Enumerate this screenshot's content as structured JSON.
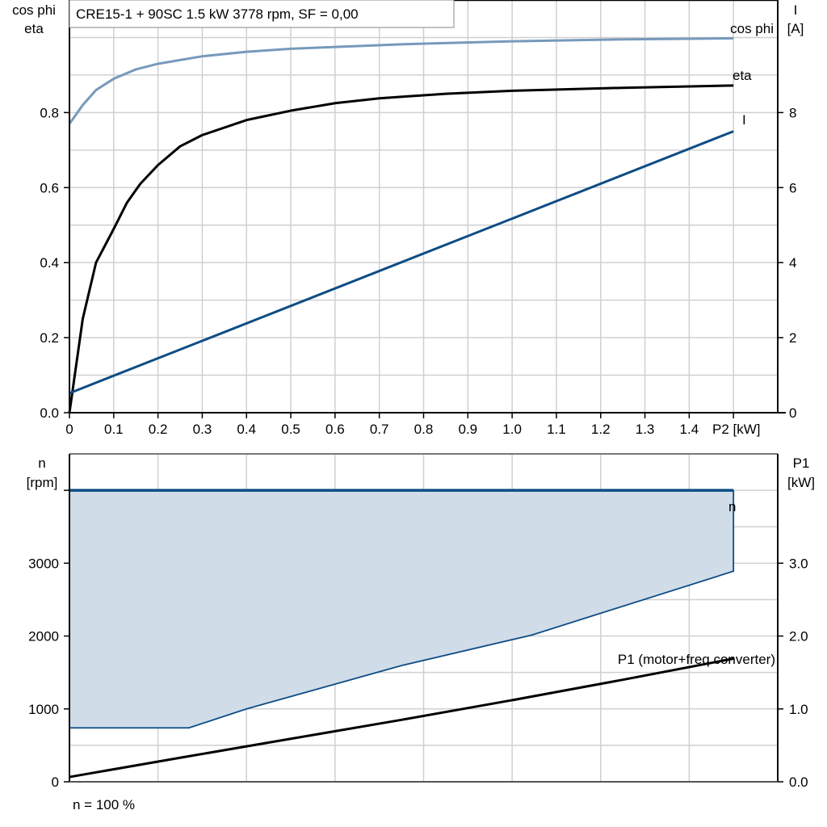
{
  "colors": {
    "cos_phi": "#7799bb",
    "eta": "#000000",
    "I": "#0e4c85",
    "n": "#0e4c85",
    "n_fill": "#d0dce8",
    "P1": "#000000",
    "grid": "#d0d0d0"
  },
  "chart_data": [
    {
      "type": "line",
      "title": "CRE15-1 + 90SC   1.5 kW   3778 rpm, SF = 0,00",
      "xlabel": "P2 [kW]",
      "ylabel_left": [
        "cos phi",
        "eta"
      ],
      "ylabel_right": [
        "I",
        "[A]"
      ],
      "xlim": [
        0,
        1.6
      ],
      "ylim_left": [
        0,
        1.1
      ],
      "ylim_right": [
        0,
        11
      ],
      "grid": true,
      "x_ticks": [
        0,
        0.1,
        0.2,
        0.3,
        0.4,
        0.5,
        0.6,
        0.7,
        0.8,
        0.9,
        1.0,
        1.1,
        1.2,
        1.3,
        1.4
      ],
      "x_tick_labels": [
        "0",
        "0.1",
        "0.2",
        "0.3",
        "0.4",
        "0.5",
        "0.6",
        "0.7",
        "0.8",
        "0.9",
        "1.0",
        "1.1",
        "1.2",
        "1.3",
        "1.4"
      ],
      "y_left_ticks": [
        0,
        0.2,
        0.4,
        0.6,
        0.8
      ],
      "y_left_tick_labels": [
        "0.0",
        "0.2",
        "0.4",
        "0.6",
        "0.8"
      ],
      "y_right_ticks": [
        0,
        2,
        4,
        6,
        8
      ],
      "y_right_tick_labels": [
        "0",
        "2",
        "4",
        "6",
        "8"
      ],
      "series": [
        {
          "name": "cos phi",
          "axis": "left",
          "x": [
            0,
            0.03,
            0.06,
            0.1,
            0.15,
            0.2,
            0.3,
            0.4,
            0.5,
            0.75,
            1.0,
            1.25,
            1.5
          ],
          "y": [
            0.77,
            0.82,
            0.86,
            0.89,
            0.915,
            0.93,
            0.95,
            0.962,
            0.97,
            0.982,
            0.99,
            0.995,
            0.998
          ]
        },
        {
          "name": "eta",
          "axis": "left",
          "x": [
            0,
            0.03,
            0.06,
            0.1,
            0.13,
            0.16,
            0.2,
            0.25,
            0.3,
            0.4,
            0.5,
            0.6,
            0.7,
            0.85,
            1.0,
            1.25,
            1.5
          ],
          "y": [
            0,
            0.25,
            0.4,
            0.49,
            0.56,
            0.61,
            0.66,
            0.71,
            0.74,
            0.78,
            0.805,
            0.825,
            0.838,
            0.85,
            0.858,
            0.866,
            0.872
          ]
        },
        {
          "name": "I",
          "axis": "right",
          "x": [
            0,
            1.5
          ],
          "y": [
            0.52,
            7.5
          ]
        }
      ]
    },
    {
      "type": "area",
      "xlim": [
        0,
        1.6
      ],
      "ylabel_left": [
        "n",
        "[rpm]"
      ],
      "ylabel_right": [
        "P1",
        "[kW]"
      ],
      "ylim_left": [
        0,
        4500
      ],
      "ylim_right": [
        0,
        4.5
      ],
      "grid": true,
      "y_left_ticks": [
        0,
        1000,
        2000,
        3000
      ],
      "y_left_tick_labels": [
        "0",
        "1000",
        "2000",
        "3000"
      ],
      "y_right_ticks": [
        0,
        1,
        2,
        3
      ],
      "y_right_tick_labels": [
        "0.0",
        "1.0",
        "2.0",
        "3.0"
      ],
      "footnote": "n = 100 %",
      "series": [
        {
          "name": "n",
          "axis": "left",
          "x_upper": [
            0,
            1.5
          ],
          "y_upper": [
            4000,
            4000
          ],
          "x_lower": [
            0,
            0.27,
            0.4,
            0.75,
            1.045,
            1.5
          ],
          "y_lower": [
            740,
            740,
            1000,
            1595,
            2015,
            2890
          ]
        },
        {
          "name": "P1 (motor+freq.converter)",
          "axis": "right",
          "x": [
            0,
            0.25,
            0.5,
            0.75,
            1.0,
            1.25,
            1.5
          ],
          "y": [
            0.066,
            0.33,
            0.59,
            0.85,
            1.12,
            1.4,
            1.69
          ]
        }
      ]
    }
  ]
}
